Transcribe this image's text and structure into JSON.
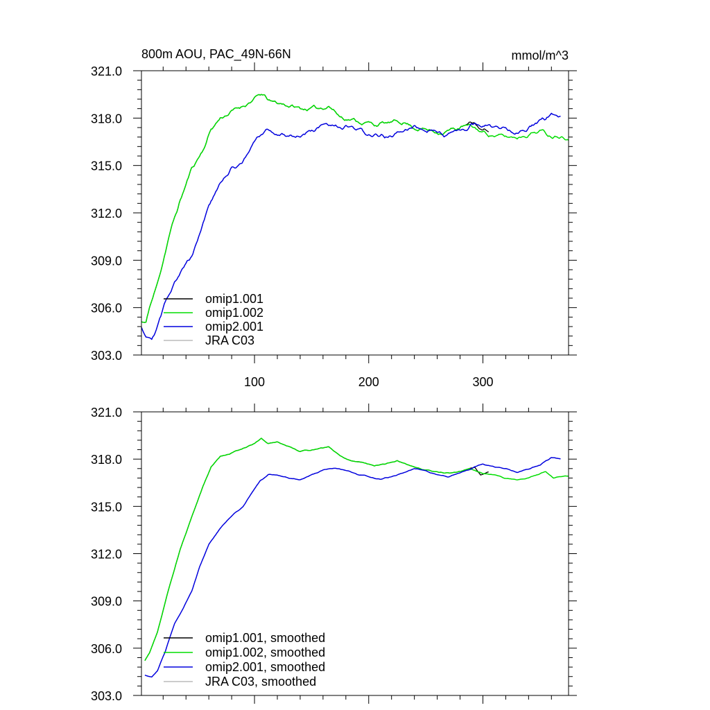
{
  "chart_data": [
    {
      "type": "line",
      "title": "800m AOU, PAC_49N-66N",
      "units": "mmol/m^3",
      "xlim": [
        1,
        375
      ],
      "ylim": [
        303,
        321
      ],
      "ytick_labels": [
        "303.0",
        "306.0",
        "309.0",
        "312.0",
        "315.0",
        "318.0",
        "321.0"
      ],
      "yticks": [
        303,
        306,
        309,
        312,
        315,
        318,
        321
      ],
      "xticks": [
        100,
        200,
        300
      ],
      "xtick_labels": [
        "100",
        "200",
        "300"
      ],
      "legend_position": "bottom-left",
      "series": [
        {
          "name": "omip1.001",
          "color": "#000000",
          "x_start": 1,
          "x_end": 305,
          "anchors": [
            [
              1,
              305.1
            ],
            [
              5,
              305.0
            ],
            [
              8,
              306.0
            ],
            [
              15,
              307.5
            ],
            [
              25,
              310.5
            ],
            [
              35,
              312.8
            ],
            [
              45,
              314.8
            ],
            [
              55,
              316.0
            ],
            [
              62,
              317.3
            ],
            [
              70,
              318.0
            ],
            [
              80,
              318.4
            ],
            [
              90,
              318.8
            ],
            [
              100,
              319.2
            ],
            [
              106,
              319.5
            ],
            [
              115,
              319.0
            ],
            [
              125,
              318.9
            ],
            [
              140,
              318.6
            ],
            [
              155,
              318.6
            ],
            [
              165,
              318.8
            ],
            [
              175,
              318.1
            ],
            [
              190,
              317.8
            ],
            [
              205,
              317.6
            ],
            [
              220,
              317.7
            ],
            [
              230,
              317.8
            ],
            [
              240,
              317.4
            ],
            [
              255,
              317.2
            ],
            [
              265,
              317.1
            ],
            [
              275,
              317.3
            ],
            [
              285,
              317.5
            ],
            [
              292,
              317.7
            ],
            [
              300,
              317.2
            ],
            [
              305,
              317.3
            ]
          ],
          "noise": 0.35,
          "seed": 11
        },
        {
          "name": "omip1.002",
          "color": "#00dd00",
          "x_start": 1,
          "x_end": 375,
          "anchors": [
            [
              1,
              305.1
            ],
            [
              5,
              305.0
            ],
            [
              8,
              306.0
            ],
            [
              15,
              307.5
            ],
            [
              25,
              310.5
            ],
            [
              35,
              312.8
            ],
            [
              45,
              314.8
            ],
            [
              55,
              316.0
            ],
            [
              62,
              317.3
            ],
            [
              70,
              318.0
            ],
            [
              80,
              318.4
            ],
            [
              90,
              318.8
            ],
            [
              100,
              319.2
            ],
            [
              106,
              319.5
            ],
            [
              115,
              319.0
            ],
            [
              125,
              318.9
            ],
            [
              140,
              318.6
            ],
            [
              155,
              318.6
            ],
            [
              165,
              318.8
            ],
            [
              175,
              318.1
            ],
            [
              190,
              317.8
            ],
            [
              205,
              317.6
            ],
            [
              220,
              317.7
            ],
            [
              230,
              317.8
            ],
            [
              240,
              317.4
            ],
            [
              255,
              317.2
            ],
            [
              265,
              317.1
            ],
            [
              275,
              317.3
            ],
            [
              285,
              317.5
            ],
            [
              292,
              317.4
            ],
            [
              300,
              317.1
            ],
            [
              310,
              316.9
            ],
            [
              320,
              316.8
            ],
            [
              330,
              316.8
            ],
            [
              340,
              317.0
            ],
            [
              350,
              317.2
            ],
            [
              360,
              316.9
            ],
            [
              370,
              316.9
            ],
            [
              375,
              316.8
            ]
          ],
          "noise": 0.35,
          "seed": 11
        },
        {
          "name": "omip2.001",
          "color": "#0000dd",
          "x_start": 1,
          "x_end": 368,
          "anchors": [
            [
              1,
              304.8
            ],
            [
              5,
              304.3
            ],
            [
              10,
              304.2
            ],
            [
              15,
              304.8
            ],
            [
              22,
              306.3
            ],
            [
              30,
              307.8
            ],
            [
              38,
              308.5
            ],
            [
              45,
              309.3
            ],
            [
              52,
              310.8
            ],
            [
              60,
              312.5
            ],
            [
              70,
              313.8
            ],
            [
              80,
              314.8
            ],
            [
              90,
              315.3
            ],
            [
              98,
              316.2
            ],
            [
              105,
              316.9
            ],
            [
              112,
              317.2
            ],
            [
              120,
              317.0
            ],
            [
              130,
              316.9
            ],
            [
              140,
              316.9
            ],
            [
              150,
              317.2
            ],
            [
              160,
              317.5
            ],
            [
              170,
              317.4
            ],
            [
              180,
              317.4
            ],
            [
              190,
              317.2
            ],
            [
              200,
              317.0
            ],
            [
              210,
              316.8
            ],
            [
              220,
              316.9
            ],
            [
              230,
              317.1
            ],
            [
              240,
              317.5
            ],
            [
              250,
              317.4
            ],
            [
              260,
              317.1
            ],
            [
              270,
              317.0
            ],
            [
              280,
              317.1
            ],
            [
              290,
              317.5
            ],
            [
              300,
              317.6
            ],
            [
              310,
              317.4
            ],
            [
              320,
              317.4
            ],
            [
              330,
              317.2
            ],
            [
              340,
              317.4
            ],
            [
              350,
              317.7
            ],
            [
              360,
              318.2
            ],
            [
              368,
              318.0
            ]
          ],
          "noise": 0.4,
          "seed": 29
        },
        {
          "name": "JRA C03",
          "color": "#bbbbbb",
          "x_start": 0,
          "x_end": 0,
          "anchors": [],
          "noise": 0,
          "seed": 0
        }
      ]
    },
    {
      "type": "line",
      "title": "",
      "units": "",
      "xlim": [
        1,
        375
      ],
      "ylim": [
        303,
        321
      ],
      "ytick_labels": [
        "303.0",
        "306.0",
        "309.0",
        "312.0",
        "315.0",
        "318.0",
        "321.0"
      ],
      "yticks": [
        303,
        306,
        309,
        312,
        315,
        318,
        321
      ],
      "xticks": [
        100,
        200,
        300
      ],
      "xtick_labels": [],
      "legend_position": "bottom-left",
      "series": [
        {
          "name": "omip1.001, smoothed",
          "color": "#000000",
          "x_start": 1,
          "x_end": 305,
          "anchors": [
            [
              4,
              305.2
            ],
            [
              8,
              305.7
            ],
            [
              15,
              307.0
            ],
            [
              25,
              309.8
            ],
            [
              35,
              312.3
            ],
            [
              45,
              314.3
            ],
            [
              55,
              316.3
            ],
            [
              62,
              317.5
            ],
            [
              70,
              318.2
            ],
            [
              78,
              318.3
            ],
            [
              90,
              318.7
            ],
            [
              100,
              319.0
            ],
            [
              106,
              319.3
            ],
            [
              112,
              319.0
            ],
            [
              120,
              319.1
            ],
            [
              130,
              318.8
            ],
            [
              140,
              318.5
            ],
            [
              150,
              318.6
            ],
            [
              160,
              318.7
            ],
            [
              165,
              318.8
            ],
            [
              175,
              318.2
            ],
            [
              185,
              317.9
            ],
            [
              195,
              317.8
            ],
            [
              205,
              317.6
            ],
            [
              215,
              317.7
            ],
            [
              225,
              317.9
            ],
            [
              232,
              317.7
            ],
            [
              240,
              317.5
            ],
            [
              250,
              317.3
            ],
            [
              260,
              317.2
            ],
            [
              270,
              317.1
            ],
            [
              280,
              317.2
            ],
            [
              288,
              317.4
            ],
            [
              293,
              317.5
            ],
            [
              298,
              317.0
            ],
            [
              305,
              317.2
            ]
          ],
          "noise": 0.08,
          "seed": 5
        },
        {
          "name": "omip1.002, smoothed",
          "color": "#00dd00",
          "x_start": 1,
          "x_end": 375,
          "anchors": [
            [
              4,
              305.2
            ],
            [
              8,
              305.7
            ],
            [
              15,
              307.0
            ],
            [
              25,
              309.8
            ],
            [
              35,
              312.3
            ],
            [
              45,
              314.3
            ],
            [
              55,
              316.3
            ],
            [
              62,
              317.5
            ],
            [
              70,
              318.2
            ],
            [
              78,
              318.3
            ],
            [
              90,
              318.7
            ],
            [
              100,
              319.0
            ],
            [
              106,
              319.3
            ],
            [
              112,
              319.0
            ],
            [
              120,
              319.1
            ],
            [
              130,
              318.8
            ],
            [
              140,
              318.5
            ],
            [
              150,
              318.6
            ],
            [
              160,
              318.7
            ],
            [
              165,
              318.8
            ],
            [
              175,
              318.2
            ],
            [
              185,
              317.9
            ],
            [
              195,
              317.8
            ],
            [
              205,
              317.6
            ],
            [
              215,
              317.7
            ],
            [
              225,
              317.9
            ],
            [
              232,
              317.7
            ],
            [
              240,
              317.5
            ],
            [
              250,
              317.3
            ],
            [
              260,
              317.2
            ],
            [
              270,
              317.1
            ],
            [
              280,
              317.2
            ],
            [
              288,
              317.4
            ],
            [
              293,
              317.3
            ],
            [
              300,
              317.1
            ],
            [
              310,
              317.0
            ],
            [
              320,
              316.8
            ],
            [
              330,
              316.7
            ],
            [
              340,
              316.8
            ],
            [
              350,
              317.1
            ],
            [
              355,
              317.2
            ],
            [
              362,
              316.8
            ],
            [
              370,
              316.9
            ],
            [
              375,
              316.9
            ]
          ],
          "noise": 0.08,
          "seed": 5
        },
        {
          "name": "omip2.001, smoothed",
          "color": "#0000dd",
          "x_start": 4,
          "x_end": 368,
          "anchors": [
            [
              4,
              304.3
            ],
            [
              10,
              304.2
            ],
            [
              15,
              304.6
            ],
            [
              22,
              305.8
            ],
            [
              30,
              307.6
            ],
            [
              38,
              308.6
            ],
            [
              45,
              309.6
            ],
            [
              52,
              311.2
            ],
            [
              60,
              312.6
            ],
            [
              70,
              313.6
            ],
            [
              80,
              314.4
            ],
            [
              90,
              315.0
            ],
            [
              98,
              315.9
            ],
            [
              105,
              316.6
            ],
            [
              112,
              317.0
            ],
            [
              120,
              317.0
            ],
            [
              130,
              316.8
            ],
            [
              140,
              316.7
            ],
            [
              150,
              317.0
            ],
            [
              160,
              317.3
            ],
            [
              170,
              317.4
            ],
            [
              180,
              317.3
            ],
            [
              190,
              317.0
            ],
            [
              200,
              316.9
            ],
            [
              210,
              316.7
            ],
            [
              220,
              316.9
            ],
            [
              230,
              317.1
            ],
            [
              240,
              317.4
            ],
            [
              250,
              317.3
            ],
            [
              260,
              317.0
            ],
            [
              270,
              316.9
            ],
            [
              280,
              317.1
            ],
            [
              290,
              317.4
            ],
            [
              300,
              317.7
            ],
            [
              310,
              317.5
            ],
            [
              320,
              317.4
            ],
            [
              330,
              317.2
            ],
            [
              340,
              317.4
            ],
            [
              350,
              317.6
            ],
            [
              360,
              318.1
            ],
            [
              368,
              318.0
            ]
          ],
          "noise": 0.08,
          "seed": 29
        },
        {
          "name": "JRA C03, smoothed",
          "color": "#bbbbbb",
          "x_start": 0,
          "x_end": 0,
          "anchors": [],
          "noise": 0,
          "seed": 0
        }
      ]
    }
  ]
}
